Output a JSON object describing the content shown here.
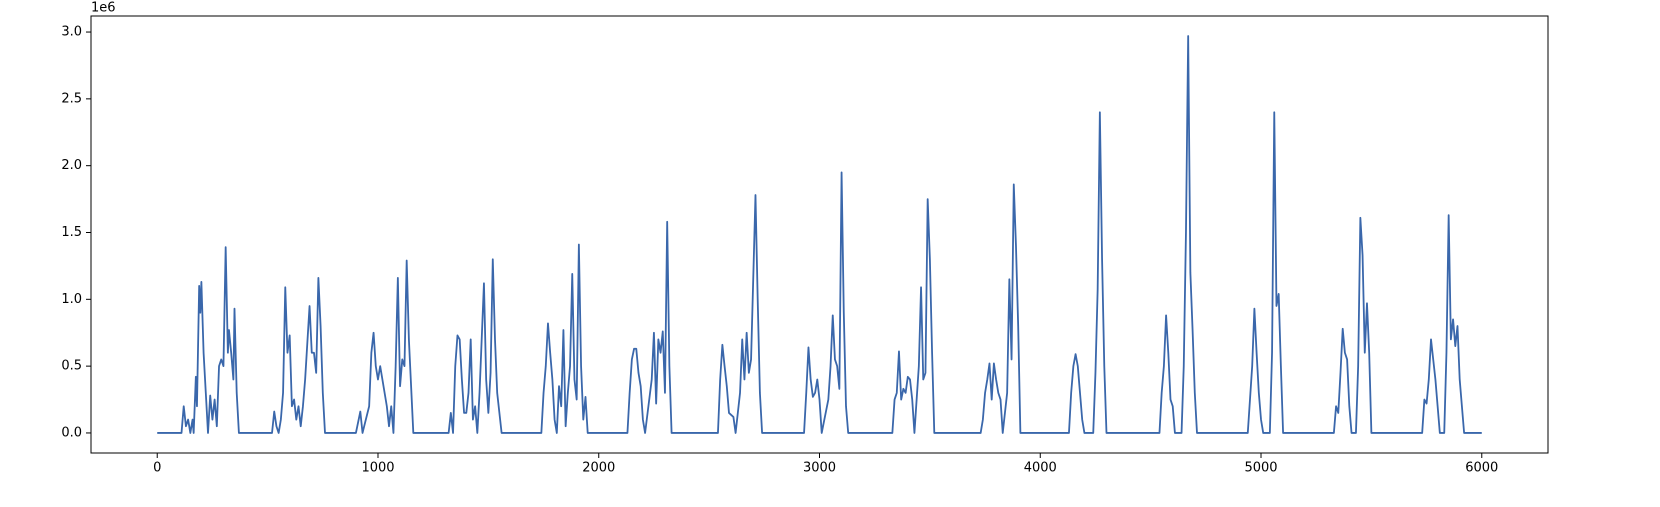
{
  "chart_data": {
    "type": "line",
    "y_offset_label": "1e6",
    "x": [
      0,
      110,
      120,
      130,
      140,
      150,
      160,
      165,
      175,
      180,
      190,
      195,
      200,
      210,
      220,
      230,
      240,
      250,
      260,
      270,
      280,
      290,
      300,
      310,
      320,
      325,
      335,
      345,
      350,
      360,
      370,
      520,
      530,
      540,
      550,
      560,
      570,
      580,
      590,
      600,
      610,
      620,
      630,
      640,
      650,
      660,
      670,
      690,
      700,
      710,
      720,
      730,
      740,
      750,
      760,
      900,
      920,
      930,
      960,
      970,
      980,
      990,
      1000,
      1010,
      1020,
      1030,
      1040,
      1050,
      1060,
      1070,
      1080,
      1090,
      1100,
      1110,
      1120,
      1130,
      1140,
      1160,
      1320,
      1330,
      1340,
      1350,
      1360,
      1370,
      1380,
      1390,
      1400,
      1410,
      1420,
      1430,
      1440,
      1450,
      1460,
      1480,
      1490,
      1500,
      1510,
      1520,
      1530,
      1540,
      1560,
      1740,
      1750,
      1760,
      1770,
      1780,
      1790,
      1800,
      1810,
      1820,
      1830,
      1840,
      1850,
      1860,
      1870,
      1880,
      1890,
      1900,
      1910,
      1920,
      1930,
      1940,
      1950,
      2130,
      2140,
      2150,
      2160,
      2170,
      2180,
      2190,
      2200,
      2210,
      2240,
      2250,
      2260,
      2270,
      2280,
      2290,
      2300,
      2310,
      2320,
      2330,
      2540,
      2550,
      2560,
      2570,
      2580,
      2590,
      2610,
      2620,
      2640,
      2650,
      2660,
      2670,
      2680,
      2690,
      2710,
      2720,
      2730,
      2740,
      2930,
      2940,
      2950,
      2960,
      2970,
      2980,
      2990,
      3000,
      3010,
      3040,
      3050,
      3060,
      3070,
      3080,
      3090,
      3100,
      3110,
      3120,
      3130,
      3330,
      3340,
      3350,
      3360,
      3370,
      3380,
      3390,
      3400,
      3410,
      3420,
      3430,
      3450,
      3460,
      3470,
      3480,
      3490,
      3500,
      3510,
      3520,
      3730,
      3740,
      3750,
      3760,
      3770,
      3780,
      3790,
      3800,
      3810,
      3820,
      3830,
      3850,
      3860,
      3870,
      3880,
      3890,
      3900,
      3910,
      4130,
      4140,
      4150,
      4160,
      4170,
      4180,
      4190,
      4200,
      4240,
      4250,
      4260,
      4270,
      4280,
      4290,
      4300,
      4540,
      4550,
      4560,
      4570,
      4580,
      4590,
      4600,
      4610,
      4640,
      4650,
      4660,
      4670,
      4680,
      4690,
      4700,
      4710,
      4940,
      4950,
      4960,
      4970,
      4980,
      4990,
      5000,
      5010,
      5040,
      5050,
      5060,
      5070,
      5080,
      5090,
      5100,
      5330,
      5340,
      5350,
      5360,
      5370,
      5380,
      5390,
      5400,
      5410,
      5430,
      5440,
      5450,
      5460,
      5470,
      5480,
      5490,
      5500,
      5730,
      5740,
      5750,
      5760,
      5770,
      5780,
      5790,
      5800,
      5810,
      5830,
      5840,
      5850,
      5860,
      5870,
      5880,
      5890,
      5900,
      5910,
      5920,
      6000
    ],
    "series": [
      {
        "name": "series",
        "color": "#3a67ab",
        "values": [
          0,
          0,
          0.2,
          0.05,
          0.1,
          0,
          0.1,
          0,
          0.42,
          0.2,
          1.1,
          0.9,
          1.13,
          0.6,
          0.3,
          0,
          0.28,
          0.1,
          0.25,
          0.05,
          0.5,
          0.55,
          0.5,
          1.39,
          0.6,
          0.77,
          0.6,
          0.4,
          0.93,
          0.3,
          0,
          0,
          0.16,
          0.05,
          0,
          0.1,
          0.3,
          1.09,
          0.6,
          0.73,
          0.2,
          0.25,
          0.1,
          0.2,
          0.05,
          0.2,
          0.4,
          0.95,
          0.6,
          0.6,
          0.45,
          1.16,
          0.8,
          0.3,
          0,
          0,
          0.16,
          0,
          0.2,
          0.6,
          0.75,
          0.5,
          0.4,
          0.5,
          0.4,
          0.3,
          0.2,
          0.05,
          0.2,
          0,
          0.5,
          1.16,
          0.35,
          0.55,
          0.5,
          1.29,
          0.7,
          0,
          0,
          0.15,
          0,
          0.5,
          0.73,
          0.7,
          0.4,
          0.15,
          0.15,
          0.3,
          0.7,
          0.1,
          0.2,
          0,
          0.3,
          1.12,
          0.4,
          0.15,
          0.45,
          1.3,
          0.7,
          0.3,
          0,
          0,
          0.3,
          0.5,
          0.82,
          0.6,
          0.4,
          0.1,
          0,
          0.35,
          0.2,
          0.77,
          0.05,
          0.3,
          0.5,
          1.19,
          0.4,
          0.25,
          1.41,
          0.5,
          0.1,
          0.27,
          0,
          0,
          0.3,
          0.55,
          0.63,
          0.63,
          0.45,
          0.35,
          0.1,
          0,
          0.4,
          0.75,
          0.22,
          0.7,
          0.6,
          0.76,
          0.3,
          1.58,
          0.5,
          0,
          0,
          0.4,
          0.66,
          0.5,
          0.35,
          0.15,
          0.12,
          0,
          0.3,
          0.7,
          0.4,
          0.75,
          0.45,
          0.55,
          1.78,
          1.0,
          0.3,
          0,
          0,
          0.3,
          0.64,
          0.4,
          0.27,
          0.3,
          0.4,
          0.25,
          0,
          0.25,
          0.5,
          0.88,
          0.55,
          0.5,
          0.33,
          1.95,
          0.9,
          0.2,
          0,
          0,
          0.25,
          0.3,
          0.61,
          0.25,
          0.33,
          0.3,
          0.42,
          0.4,
          0.25,
          0,
          0.5,
          1.09,
          0.4,
          0.45,
          1.75,
          1.3,
          0.6,
          0,
          0,
          0.1,
          0.3,
          0.4,
          0.52,
          0.25,
          0.52,
          0.4,
          0.3,
          0.25,
          0,
          0.3,
          1.15,
          0.55,
          1.86,
          1.4,
          0.8,
          0,
          0,
          0.3,
          0.5,
          0.59,
          0.5,
          0.3,
          0.1,
          0,
          0,
          0.45,
          1.07,
          2.4,
          1.3,
          0.5,
          0,
          0,
          0.3,
          0.5,
          0.88,
          0.6,
          0.25,
          0.2,
          0,
          0,
          0.5,
          1.5,
          2.97,
          1.2,
          0.77,
          0.3,
          0,
          0,
          0.25,
          0.5,
          0.93,
          0.6,
          0.3,
          0.1,
          0,
          0,
          0.6,
          2.4,
          0.95,
          1.04,
          0.5,
          0,
          0,
          0.2,
          0.15,
          0.45,
          0.78,
          0.6,
          0.55,
          0.2,
          0,
          0,
          0.5,
          1.61,
          1.33,
          0.6,
          0.97,
          0.6,
          0,
          0,
          0.25,
          0.22,
          0.4,
          0.7,
          0.55,
          0.4,
          0.2,
          0,
          0,
          0.6,
          1.63,
          0.7,
          0.85,
          0.65,
          0.8,
          0.4,
          0.2,
          0,
          0
        ]
      }
    ],
    "xlim": [
      -300,
      6300
    ],
    "xticks": [
      0,
      1000,
      2000,
      3000,
      4000,
      5000,
      6000
    ],
    "ylim": [
      -0.15,
      3.12
    ],
    "yticks": [
      {
        "value": 0,
        "label": "0.0"
      },
      0.5,
      {
        "value": 1,
        "label": "1.0"
      },
      1.5,
      {
        "value": 2,
        "label": "2.0"
      },
      2.5,
      {
        "value": 3,
        "label": "3.0"
      }
    ],
    "grid": false
  }
}
